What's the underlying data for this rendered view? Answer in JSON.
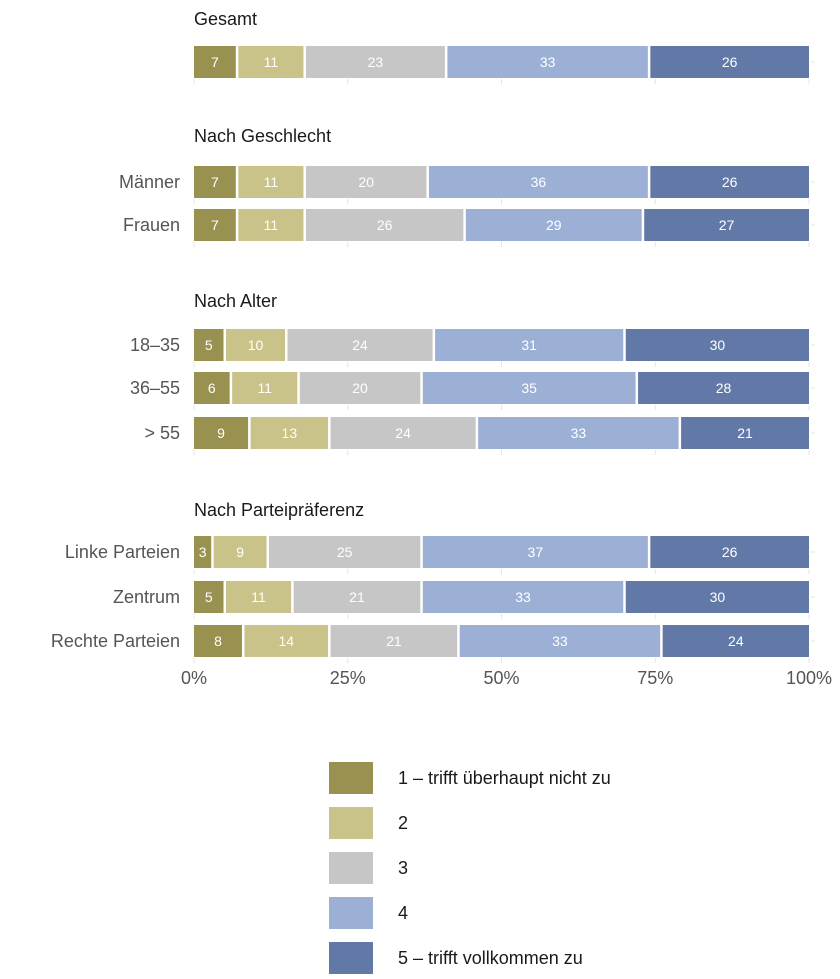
{
  "chart_data": {
    "type": "bar",
    "orientation": "horizontal",
    "stacked": true,
    "normalized_to": 100,
    "x_ticks": [
      "0%",
      "25%",
      "50%",
      "75%",
      "100%"
    ],
    "xlim": [
      0,
      100
    ],
    "categories_legend": [
      "1 – trifft überhaupt nicht zu",
      "2",
      "3",
      "4",
      "5 – trifft vollkommen zu"
    ],
    "colors": [
      "#99914f",
      "#c9c38a",
      "#c6c6c6",
      "#9cb0d6",
      "#6279a8"
    ],
    "groups": [
      {
        "title": "Gesamt",
        "rows": [
          {
            "label": "",
            "values": [
              7,
              11,
              23,
              33,
              26
            ]
          }
        ]
      },
      {
        "title": "Nach Geschlecht",
        "rows": [
          {
            "label": "Männer",
            "values": [
              7,
              11,
              20,
              36,
              26
            ]
          },
          {
            "label": "Frauen",
            "values": [
              7,
              11,
              26,
              29,
              27
            ]
          }
        ]
      },
      {
        "title": "Nach Alter",
        "rows": [
          {
            "label": "18–35",
            "values": [
              5,
              10,
              24,
              31,
              30
            ]
          },
          {
            "label": "36–55",
            "values": [
              6,
              11,
              20,
              35,
              28
            ]
          },
          {
            "label": "> 55",
            "values": [
              9,
              13,
              24,
              33,
              21
            ]
          }
        ]
      },
      {
        "title": "Nach Parteipräferenz",
        "rows": [
          {
            "label": "Linke Parteien",
            "values": [
              3,
              9,
              25,
              37,
              26
            ]
          },
          {
            "label": "Zentrum",
            "values": [
              5,
              11,
              21,
              33,
              30
            ]
          },
          {
            "label": "Rechte Parteien",
            "values": [
              8,
              14,
              21,
              33,
              24
            ]
          }
        ]
      }
    ],
    "legend_position": "bottom-center",
    "grid": true
  }
}
